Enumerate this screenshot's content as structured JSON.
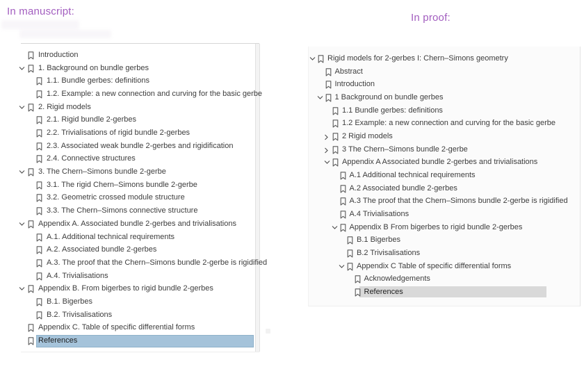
{
  "headers": {
    "left": "In manuscript:",
    "right": "In proof:"
  },
  "colors": {
    "header_purple": "#a25dbf",
    "tree_text": "#3d3d3d",
    "icon_gray": "#5a5a5a",
    "selection_blue": "#a5c3da",
    "selection_blue_border": "#8fb2ca",
    "selection_gray": "#d9d9d9",
    "panel_border": "#d6d6d6"
  },
  "manuscript_outline": {
    "selected_item": "References",
    "items": [
      {
        "label": "Introduction",
        "level": 0,
        "chevron": null,
        "selected": false
      },
      {
        "label": "1. Background on bundle gerbes",
        "level": 0,
        "chevron": "down",
        "selected": false
      },
      {
        "label": "1.1. Bundle gerbes: definitions",
        "level": 1,
        "chevron": null,
        "selected": false
      },
      {
        "label": "1.2. Example: a new connection and curving for the basic gerbe",
        "level": 1,
        "chevron": null,
        "selected": false
      },
      {
        "label": "2. Rigid models",
        "level": 0,
        "chevron": "down",
        "selected": false
      },
      {
        "label": "2.1. Rigid bundle 2-gerbes",
        "level": 1,
        "chevron": null,
        "selected": false
      },
      {
        "label": "2.2. Trivialisations of rigid bundle 2-gerbes",
        "level": 1,
        "chevron": null,
        "selected": false
      },
      {
        "label": "2.3. Associated weak bundle 2-gerbes and rigidification",
        "level": 1,
        "chevron": null,
        "selected": false
      },
      {
        "label": "2.4. Connective structures",
        "level": 1,
        "chevron": null,
        "selected": false
      },
      {
        "label": "3. The Chern–Simons bundle 2-gerbe",
        "level": 0,
        "chevron": "down",
        "selected": false
      },
      {
        "label": "3.1. The rigid Chern–Simons bundle 2-gerbe",
        "level": 1,
        "chevron": null,
        "selected": false
      },
      {
        "label": "3.2. Geometric crossed module structure",
        "level": 1,
        "chevron": null,
        "selected": false
      },
      {
        "label": "3.3. The Chern–Simons connective structure",
        "level": 1,
        "chevron": null,
        "selected": false
      },
      {
        "label": "Appendix A. Associated bundle 2-gerbes and trivialisations",
        "level": 0,
        "chevron": "down",
        "selected": false
      },
      {
        "label": "A.1. Additional technical requirements",
        "level": 1,
        "chevron": null,
        "selected": false
      },
      {
        "label": "A.2. Associated bundle 2-gerbes",
        "level": 1,
        "chevron": null,
        "selected": false
      },
      {
        "label": "A.3. The proof that the Chern–Simons bundle 2-gerbe is rigidified",
        "level": 1,
        "chevron": null,
        "selected": false
      },
      {
        "label": "A.4. Trivialisations",
        "level": 1,
        "chevron": null,
        "selected": false
      },
      {
        "label": "Appendix B. From bigerbes to rigid bundle 2-gerbes",
        "level": 0,
        "chevron": "down",
        "selected": false
      },
      {
        "label": "B.1. Bigerbes",
        "level": 1,
        "chevron": null,
        "selected": false
      },
      {
        "label": "B.2. Trivisalisations",
        "level": 1,
        "chevron": null,
        "selected": false
      },
      {
        "label": "Appendix C. Table of specific differential forms",
        "level": 0,
        "chevron": null,
        "selected": false
      },
      {
        "label": "References",
        "level": 0,
        "chevron": null,
        "selected": true
      }
    ]
  },
  "proof_outline": {
    "selected_item": "References",
    "items": [
      {
        "label": "Rigid models for 2-gerbes I: Chern–Simons geometry",
        "level": 0,
        "chevron": "down",
        "selected": false
      },
      {
        "label": "Abstract",
        "level": 1,
        "chevron": null,
        "selected": false
      },
      {
        "label": "Introduction",
        "level": 1,
        "chevron": null,
        "selected": false
      },
      {
        "label": "1 Background on bundle gerbes",
        "level": 1,
        "chevron": "down",
        "selected": false
      },
      {
        "label": "1.1 Bundle gerbes: definitions",
        "level": 2,
        "chevron": null,
        "selected": false
      },
      {
        "label": "1.2 Example: a new connection and curving for the basic gerbe",
        "level": 2,
        "chevron": null,
        "selected": false
      },
      {
        "label": "2 Rigid models",
        "level": 2,
        "chevron": "right",
        "selected": false
      },
      {
        "label": "3 The Chern–Simons bundle 2-gerbe",
        "level": 2,
        "chevron": "right",
        "selected": false
      },
      {
        "label": "Appendix A  Associated bundle 2-gerbes and trivialisations",
        "level": 2,
        "chevron": "down",
        "selected": false
      },
      {
        "label": "A.1 Additional technical requirements",
        "level": 3,
        "chevron": null,
        "selected": false
      },
      {
        "label": "A.2 Associated bundle 2-gerbes",
        "level": 3,
        "chevron": null,
        "selected": false
      },
      {
        "label": "A.3 The proof that the Chern–Simons bundle 2-gerbe is rigidified",
        "level": 3,
        "chevron": null,
        "selected": false
      },
      {
        "label": "A.4 Trivialisations",
        "level": 3,
        "chevron": null,
        "selected": false
      },
      {
        "label": "Appendix B  From bigerbes to rigid bundle 2-gerbes",
        "level": 3,
        "chevron": "down",
        "selected": false
      },
      {
        "label": "B.1 Bigerbes",
        "level": 4,
        "chevron": null,
        "selected": false
      },
      {
        "label": "B.2 Trivisalisations",
        "level": 4,
        "chevron": null,
        "selected": false
      },
      {
        "label": "Appendix C  Table of specific differential forms",
        "level": 4,
        "chevron": "down",
        "selected": false
      },
      {
        "label": "Acknowledgements",
        "level": 5,
        "chevron": null,
        "selected": false
      },
      {
        "label": "References",
        "level": 5,
        "chevron": null,
        "selected": true
      }
    ]
  }
}
